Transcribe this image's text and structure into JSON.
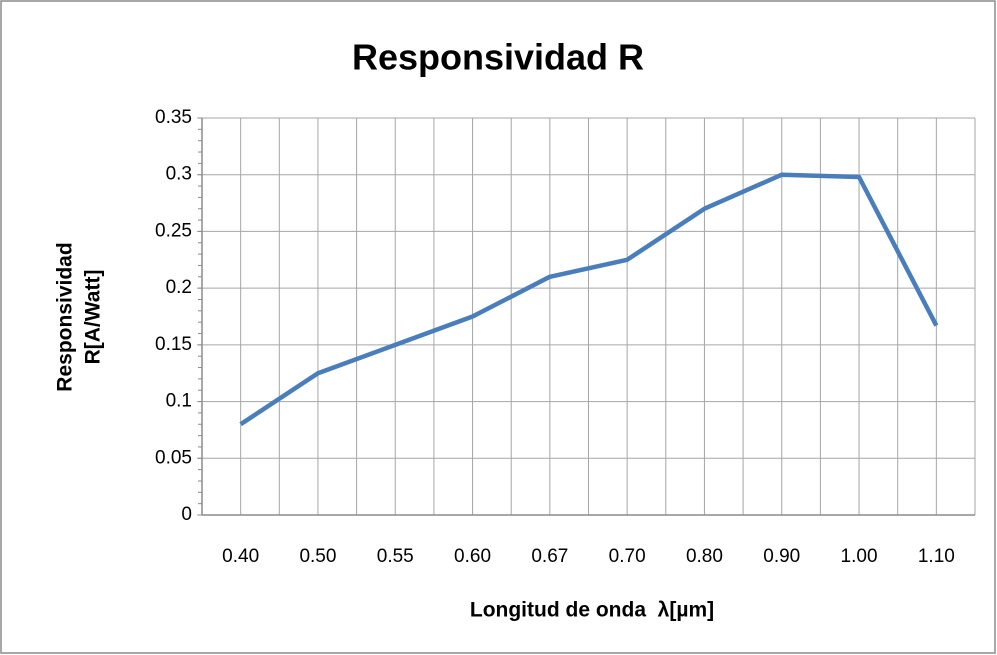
{
  "chart_data": {
    "type": "line",
    "title": "Responsividad R",
    "xlabel": "Longitud de onda  λ[µm]",
    "ylabel": [
      "Responsividad",
      "R[A/Watt]"
    ],
    "categories": [
      "0.40",
      "0.50",
      "0.55",
      "0.60",
      "0.67",
      "0.70",
      "0.80",
      "0.90",
      "1.00",
      "1.10"
    ],
    "values": [
      0.08,
      0.125,
      0.15,
      0.175,
      0.21,
      0.225,
      0.27,
      0.3,
      0.298,
      0.167
    ],
    "color": "#4a7ebb",
    "ylim": [
      0,
      0.35
    ],
    "yticks": [
      0,
      0.05,
      0.1,
      0.15,
      0.2,
      0.25,
      0.3,
      0.35
    ],
    "grid": true
  }
}
